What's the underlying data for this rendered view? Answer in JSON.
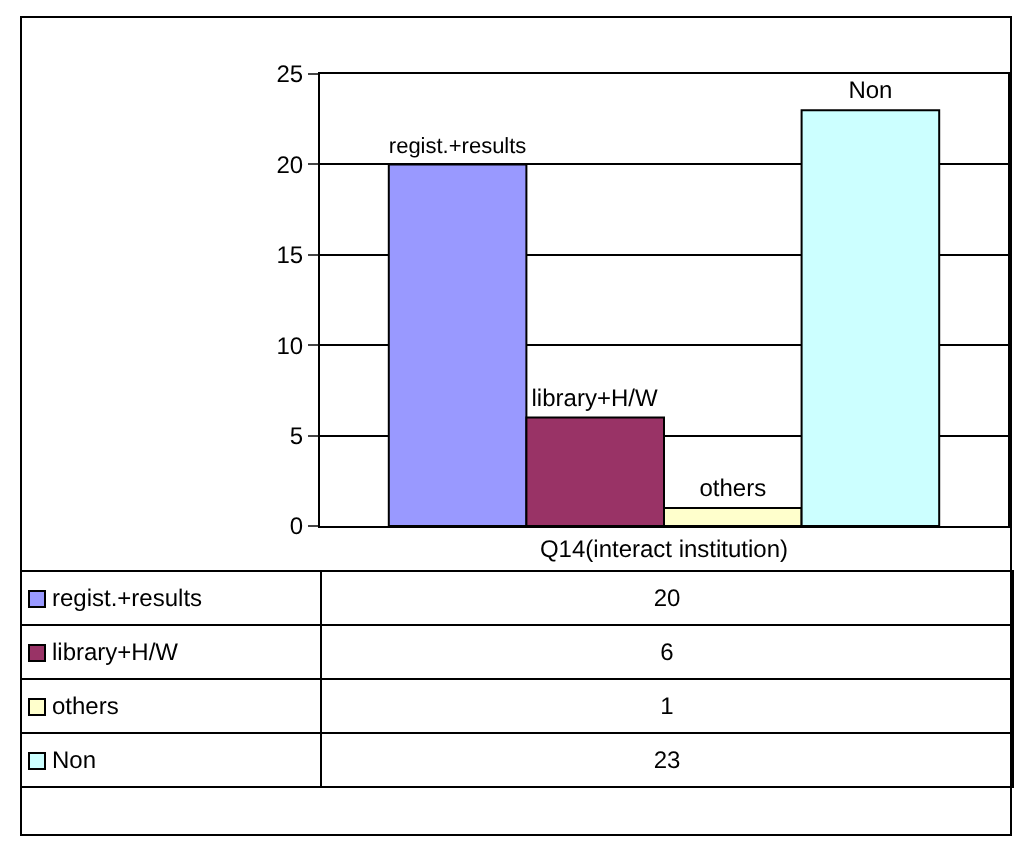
{
  "chart_data": {
    "type": "bar",
    "categories": [
      "Q14(interact institution)"
    ],
    "series": [
      {
        "name": "regist.+results",
        "color": "#9999ff",
        "values": [
          20
        ]
      },
      {
        "name": "library+H/W",
        "color": "#993366",
        "values": [
          6
        ]
      },
      {
        "name": "others",
        "color": "#ffffcc",
        "values": [
          1
        ]
      },
      {
        "name": "Non",
        "color": "#ccffff",
        "values": [
          23
        ]
      }
    ],
    "ylim": [
      0,
      25
    ],
    "yticks": [
      0,
      5,
      10,
      15,
      20,
      25
    ],
    "grid": "y",
    "legend": "bottom left",
    "annotations": [
      "20",
      "6",
      "1",
      "23"
    ]
  }
}
